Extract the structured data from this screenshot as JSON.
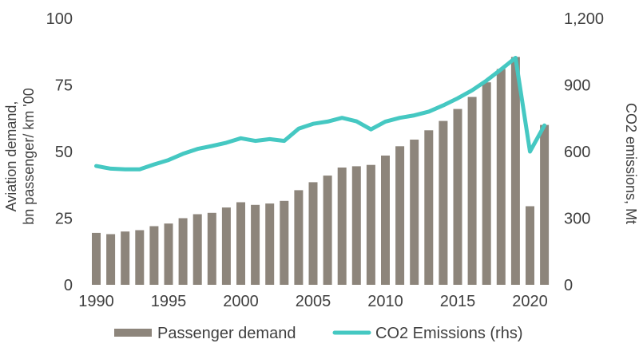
{
  "chart_data": {
    "type": "combo-bar-line",
    "categories": [
      1990,
      1991,
      1992,
      1993,
      1994,
      1995,
      1996,
      1997,
      1998,
      1999,
      2000,
      2001,
      2002,
      2003,
      2004,
      2005,
      2006,
      2007,
      2008,
      2009,
      2010,
      2011,
      2012,
      2013,
      2014,
      2015,
      2016,
      2017,
      2018,
      2019,
      2020,
      2021
    ],
    "series": [
      {
        "name": "Passenger demand",
        "type": "bar",
        "axis": "left",
        "values": [
          19.5,
          19,
          20,
          20.5,
          22,
          23,
          25,
          26.5,
          27,
          29,
          31,
          30,
          30.5,
          31.5,
          35.5,
          38.5,
          41,
          44,
          44.5,
          45,
          48.5,
          52,
          54.5,
          58,
          61.5,
          66,
          70.5,
          76,
          81,
          85.5,
          29.5,
          60
        ]
      },
      {
        "name": "CO2 Emissions (rhs)",
        "type": "line",
        "axis": "right",
        "values": [
          535,
          523,
          520,
          520,
          542,
          562,
          590,
          612,
          625,
          640,
          660,
          648,
          656,
          648,
          703,
          725,
          735,
          752,
          736,
          700,
          735,
          752,
          763,
          780,
          808,
          840,
          876,
          920,
          970,
          1022,
          600,
          718
        ]
      }
    ],
    "left_axis": {
      "title_line1": "Aviation demand,",
      "title_line2": "bn passenger/ km '00",
      "range": [
        0,
        100
      ],
      "ticks": [
        {
          "label": "0",
          "value": 0
        },
        {
          "label": "25",
          "value": 25
        },
        {
          "label": "50",
          "value": 50
        },
        {
          "label": "75",
          "value": 75
        },
        {
          "label": "100",
          "value": 100
        }
      ]
    },
    "right_axis": {
      "title": "CO2 emissions, Mt",
      "range": [
        0,
        1200
      ],
      "ticks": [
        {
          "label": "0",
          "value": 0
        },
        {
          "label": "300",
          "value": 300
        },
        {
          "label": "600",
          "value": 600
        },
        {
          "label": "900",
          "value": 900
        },
        {
          "label": "1,200",
          "value": 1200
        }
      ]
    },
    "x_axis": {
      "tick_labels": [
        "1990",
        "1995",
        "2000",
        "2005",
        "2010",
        "2015",
        "2020"
      ]
    },
    "legend": {
      "position": "bottom",
      "items": [
        "Passenger demand",
        "CO2 Emissions (rhs)"
      ]
    },
    "grid": "off",
    "colors": {
      "bar": "#8d857b",
      "line": "#45c8c2",
      "text": "#404040"
    }
  }
}
